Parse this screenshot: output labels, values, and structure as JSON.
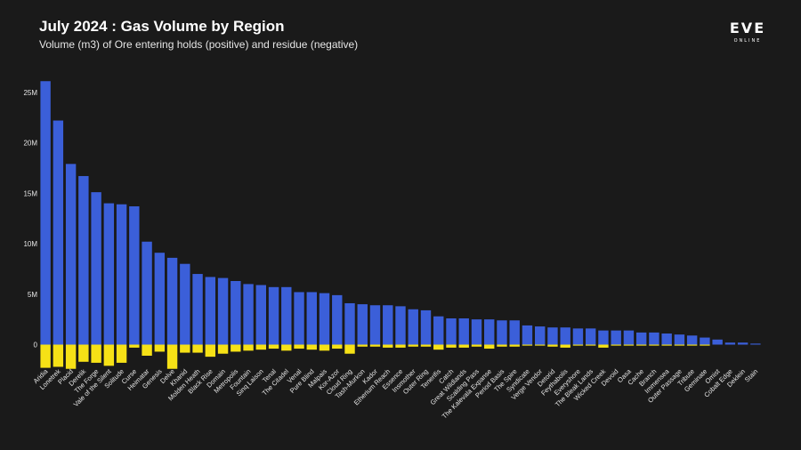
{
  "title": "July 2024 : Gas Volume by Region",
  "subtitle": "Volume (m3) of Ore entering holds (positive) and residue (negative)",
  "logo": {
    "main": "EVE",
    "sub": "ONLINE"
  },
  "colors": {
    "background": "#1a1a1a",
    "positive": "#3b5fd9",
    "negative": "#f6e116",
    "text": "#e6e6e6"
  },
  "chart_data": {
    "type": "bar",
    "stacked": true,
    "title": "July 2024 : Gas Volume by Region",
    "subtitle": "Volume (m3) of Ore entering holds (positive) and residue (negative)",
    "xlabel": "",
    "ylabel": "",
    "ylim": [
      -2.6,
      27.4
    ],
    "yticks": [
      0,
      5,
      10,
      15,
      20,
      25
    ],
    "ytick_labels": [
      "0",
      "5M",
      "10M",
      "15M",
      "20M",
      "25M"
    ],
    "grid": false,
    "categories": [
      "Aridia",
      "Lonetrek",
      "Placid",
      "Derelik",
      "The Forge",
      "Vale of the Silent",
      "Solitude",
      "Curse",
      "Heimatar",
      "Genesis",
      "Delve",
      "Khanid",
      "Molden Heath",
      "Black Rise",
      "Domain",
      "Metropolis",
      "Fountain",
      "Sinq Laison",
      "Tenal",
      "The Citadel",
      "Venal",
      "Pure Blind",
      "Malpais",
      "Kor-Azor",
      "Cloud Ring",
      "Tash-Murkon",
      "Kador",
      "Etherium Reach",
      "Essence",
      "Insmother",
      "Outer Ring",
      "Tenerifis",
      "Catch",
      "Great Wildlands",
      "Scalding Pass",
      "The Kalevala Expanse",
      "Period Basis",
      "The Spire",
      "Syndicate",
      "Verge Vendor",
      "Detorid",
      "Feythabolis",
      "Everyshore",
      "The Bleak Lands",
      "Wicked Creek",
      "Devoid",
      "Oasa",
      "Cache",
      "Branch",
      "Immensea",
      "Outer Passage",
      "Tribute",
      "Geminate",
      "Omist",
      "Cobalt Edge",
      "Deklein",
      "Stain"
    ],
    "series": [
      {
        "values": [
          26.1,
          22.2,
          17.9,
          16.7,
          15.1,
          14.0,
          13.9,
          13.7,
          10.2,
          9.1,
          8.6,
          8.0,
          7.0,
          6.7,
          6.6,
          6.3,
          6.0,
          5.9,
          5.7,
          5.7,
          5.2,
          5.2,
          5.1,
          4.9,
          4.1,
          4.0,
          3.9,
          3.9,
          3.8,
          3.5,
          3.4,
          2.8,
          2.6,
          2.6,
          2.5,
          2.5,
          2.4,
          2.4,
          1.9,
          1.8,
          1.7,
          1.7,
          1.6,
          1.6,
          1.4,
          1.4,
          1.4,
          1.2,
          1.2,
          1.1,
          1.0,
          0.9,
          0.7,
          0.5,
          0.2,
          0.2,
          0.1
        ]
      },
      {
        "values": [
          -2.3,
          -2.2,
          -2.4,
          -1.7,
          -1.8,
          -2.1,
          -1.8,
          -0.3,
          -1.1,
          -0.7,
          -2.4,
          -0.8,
          -0.8,
          -1.2,
          -0.9,
          -0.7,
          -0.6,
          -0.5,
          -0.4,
          -0.6,
          -0.4,
          -0.5,
          -0.6,
          -0.4,
          -0.9,
          -0.2,
          -0.2,
          -0.3,
          -0.3,
          -0.2,
          -0.2,
          -0.5,
          -0.3,
          -0.3,
          -0.2,
          -0.4,
          -0.2,
          -0.2,
          -0.1,
          -0.1,
          -0.2,
          -0.3,
          -0.1,
          -0.1,
          -0.3,
          -0.1,
          -0.1,
          -0.1,
          -0.1,
          -0.1,
          -0.1,
          -0.1,
          -0.1,
          0,
          0,
          0,
          0
        ]
      }
    ]
  }
}
